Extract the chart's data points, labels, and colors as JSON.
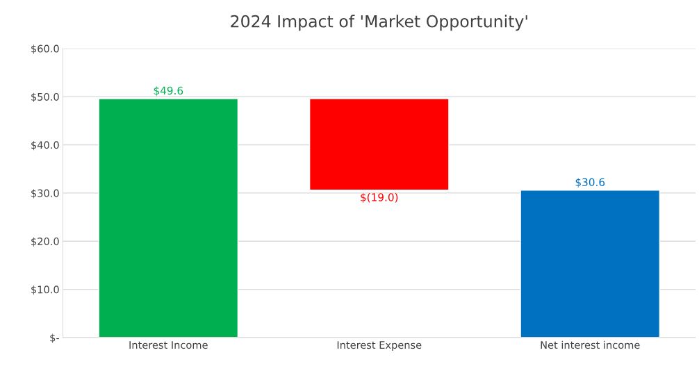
{
  "chart_data": {
    "type": "bar",
    "title": "2024 Impact of 'Market Opportunity'",
    "categories": [
      "Interest Income",
      "Interest Expense",
      "Net interest income"
    ],
    "values": [
      49.6,
      -19.0,
      30.6
    ],
    "base": [
      0,
      49.6,
      0
    ],
    "colors": [
      "#00b050",
      "#ff0000",
      "#0070c0"
    ],
    "value_labels": [
      "$49.6",
      "$(19.0)",
      "$30.6"
    ],
    "ylim": [
      0,
      60
    ],
    "yticks": [
      {
        "value": 0,
        "label": "$-"
      },
      {
        "value": 10,
        "label": "$10.0"
      },
      {
        "value": 20,
        "label": "$20.0"
      },
      {
        "value": 30,
        "label": "$30.0"
      },
      {
        "value": 40,
        "label": "$40.0"
      },
      {
        "value": 50,
        "label": "$50.0"
      },
      {
        "value": 60,
        "label": "$60.0"
      }
    ],
    "grid": "y"
  }
}
